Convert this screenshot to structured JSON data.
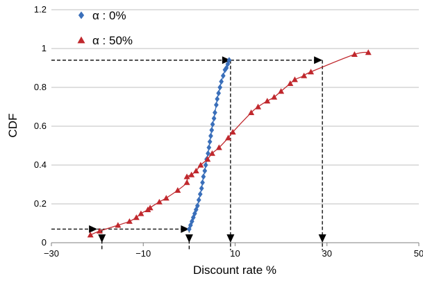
{
  "chart_data": {
    "type": "scatter",
    "xlabel": "Discount rate %",
    "ylabel": "CDF",
    "xlim": [
      -30,
      50
    ],
    "ylim": [
      0,
      1.2
    ],
    "x_ticks": [
      -30,
      -10,
      10,
      30,
      50
    ],
    "y_ticks": [
      0,
      0.2,
      0.4,
      0.6,
      0.8,
      1,
      1.2
    ],
    "x_tick_labels": [
      "−30",
      "−10",
      "10",
      "30",
      "50"
    ],
    "y_tick_labels": [
      "0",
      "0.2",
      "0.4",
      "0.6",
      "0.8",
      "1",
      "1.2"
    ],
    "grid": "horizontal",
    "legend_position": "top-left",
    "series": [
      {
        "name": "α : 0%",
        "marker": "diamond",
        "color": "#3a6fba",
        "points": [
          [
            0.0,
            0.07
          ],
          [
            0.3,
            0.09
          ],
          [
            0.6,
            0.11
          ],
          [
            0.9,
            0.13
          ],
          [
            1.2,
            0.15
          ],
          [
            1.5,
            0.17
          ],
          [
            1.8,
            0.19
          ],
          [
            2.1,
            0.22
          ],
          [
            2.4,
            0.25
          ],
          [
            2.7,
            0.28
          ],
          [
            2.9,
            0.31
          ],
          [
            3.1,
            0.34
          ],
          [
            3.4,
            0.37
          ],
          [
            3.6,
            0.4
          ],
          [
            3.8,
            0.43
          ],
          [
            4.1,
            0.46
          ],
          [
            4.3,
            0.49
          ],
          [
            4.5,
            0.52
          ],
          [
            4.7,
            0.55
          ],
          [
            4.9,
            0.58
          ],
          [
            5.1,
            0.61
          ],
          [
            5.4,
            0.64
          ],
          [
            5.6,
            0.67
          ],
          [
            5.9,
            0.71
          ],
          [
            6.1,
            0.74
          ],
          [
            6.4,
            0.77
          ],
          [
            6.7,
            0.8
          ],
          [
            7.0,
            0.83
          ],
          [
            7.4,
            0.86
          ],
          [
            7.8,
            0.89
          ],
          [
            8.1,
            0.9
          ],
          [
            8.4,
            0.92
          ],
          [
            8.7,
            0.94
          ]
        ]
      },
      {
        "name": "α : 50%",
        "marker": "triangle",
        "color": "#c0282d",
        "points": [
          [
            -21.5,
            0.04
          ],
          [
            -19.5,
            0.06
          ],
          [
            -15.5,
            0.09
          ],
          [
            -13.0,
            0.11
          ],
          [
            -11.5,
            0.13
          ],
          [
            -10.5,
            0.15
          ],
          [
            -9.0,
            0.17
          ],
          [
            -8.5,
            0.18
          ],
          [
            -6.5,
            0.21
          ],
          [
            -5.0,
            0.23
          ],
          [
            -2.5,
            0.27
          ],
          [
            -0.5,
            0.31
          ],
          [
            -0.5,
            0.34
          ],
          [
            0.5,
            0.35
          ],
          [
            1.5,
            0.37
          ],
          [
            2.5,
            0.4
          ],
          [
            4.0,
            0.43
          ],
          [
            5.0,
            0.46
          ],
          [
            6.5,
            0.49
          ],
          [
            8.5,
            0.54
          ],
          [
            9.5,
            0.57
          ],
          [
            13.5,
            0.67
          ],
          [
            15.0,
            0.7
          ],
          [
            17.0,
            0.73
          ],
          [
            18.5,
            0.75
          ],
          [
            20.0,
            0.78
          ],
          [
            22.0,
            0.82
          ],
          [
            23.0,
            0.84
          ],
          [
            25.0,
            0.86
          ],
          [
            26.5,
            0.88
          ],
          [
            36.0,
            0.97
          ],
          [
            39.0,
            0.98
          ]
        ]
      }
    ],
    "guides": [
      {
        "style": "dashed",
        "x": [
          -30,
          9
        ],
        "y": [
          0.94,
          0.94
        ],
        "arrow": "end"
      },
      {
        "style": "dashed",
        "x": [
          9,
          29
        ],
        "y": [
          0.94,
          0.94
        ],
        "arrow": "end"
      },
      {
        "style": "dashed",
        "x": [
          9,
          9
        ],
        "y": [
          0.94,
          0.0
        ],
        "arrow": "end"
      },
      {
        "style": "dashed",
        "x": [
          29,
          29
        ],
        "y": [
          0.94,
          0.0
        ],
        "arrow": "end"
      },
      {
        "style": "dashed",
        "x": [
          -30,
          -20
        ],
        "y": [
          0.07,
          0.07
        ],
        "arrow": "end"
      },
      {
        "style": "dashed",
        "x": [
          -20,
          0
        ],
        "y": [
          0.07,
          0.07
        ],
        "arrow": "end"
      },
      {
        "style": "dashed",
        "x": [
          -19,
          -19
        ],
        "y": [
          0.07,
          0.0
        ],
        "arrow": "end"
      },
      {
        "style": "dashed",
        "x": [
          0,
          0
        ],
        "y": [
          0.07,
          0.0
        ],
        "arrow": "end"
      }
    ]
  }
}
